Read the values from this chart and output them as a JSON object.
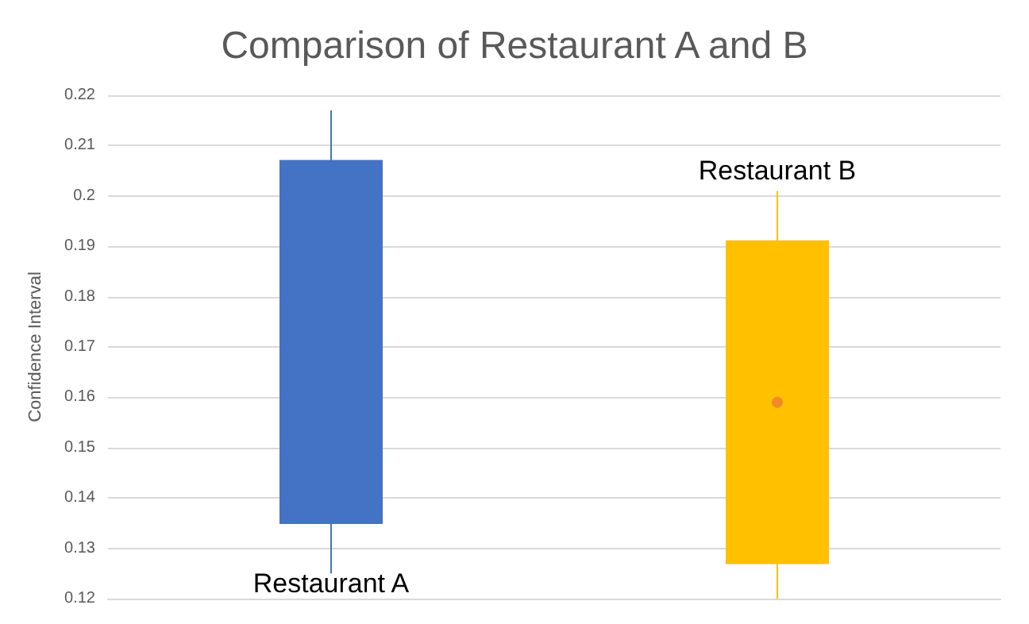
{
  "chart_data": {
    "type": "candlestick",
    "title": "Comparison of Restaurant A and B",
    "ylabel": "Confidence Interval",
    "categories": [
      null,
      null
    ],
    "ohlc": [
      [
        0.135,
        0.217,
        0.125,
        0.207
      ],
      [
        0.127,
        0.201,
        0.12,
        0.191
      ]
    ],
    "colors": [
      "#4472c4",
      "#ffc000"
    ],
    "series": [
      {
        "type": "scatter",
        "color": "#ed7d31",
        "values": [
          null,
          0.159
        ]
      }
    ],
    "annotations": [
      "Restaurant A",
      "Restaurant B"
    ],
    "ylim": [
      0.12,
      0.22
    ],
    "yticks": [
      0.12,
      0.13,
      0.14,
      0.15,
      0.16,
      0.17,
      0.18,
      0.19,
      0.2,
      0.21,
      0.22
    ],
    "grid": "y",
    "tick_labels": "y"
  }
}
